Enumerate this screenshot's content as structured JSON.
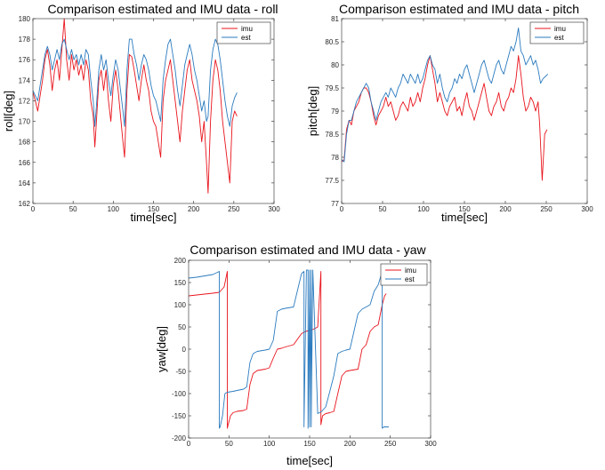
{
  "chart_data": [
    {
      "type": "line",
      "title": "Comparison estimated and IMU data - roll",
      "xlabel": "time[sec]",
      "ylabel": "roll[deg]",
      "xlim": [
        0,
        300
      ],
      "ylim": [
        162,
        180
      ],
      "xticks": [
        0,
        50,
        100,
        150,
        200,
        250,
        300
      ],
      "yticks": [
        162,
        164,
        166,
        168,
        170,
        172,
        174,
        176,
        178,
        180
      ],
      "legend": "top-right",
      "grid": false,
      "series": [
        {
          "name": "imu",
          "color": "#e8141c",
          "x": [
            0,
            3,
            6,
            9,
            12,
            15,
            18,
            21,
            24,
            27,
            30,
            33,
            36,
            39,
            42,
            45,
            48,
            51,
            54,
            57,
            60,
            63,
            66,
            69,
            72,
            75,
            77,
            79,
            82,
            85,
            88,
            91,
            94,
            97,
            100,
            103,
            106,
            109,
            112,
            114,
            117,
            120,
            123,
            126,
            129,
            132,
            135,
            138,
            141,
            144,
            147,
            150,
            153,
            156,
            159,
            162,
            165,
            168,
            171,
            174,
            177,
            180,
            183,
            186,
            189,
            192,
            195,
            198,
            201,
            204,
            207,
            210,
            213,
            216,
            218,
            221,
            224,
            227,
            230,
            233,
            236,
            239,
            242,
            245,
            248,
            251,
            254
          ],
          "y": [
            172.8,
            172,
            171,
            172.5,
            174,
            176,
            177,
            175.5,
            173,
            175,
            176,
            174,
            177,
            180,
            176,
            174,
            176.5,
            175,
            176,
            174.5,
            175.5,
            174,
            176,
            175,
            172,
            170.5,
            167.5,
            170,
            174,
            175,
            173,
            175,
            172,
            170,
            173.5,
            175,
            173,
            170.5,
            168,
            166.5,
            173,
            176.5,
            176.3,
            175,
            173.5,
            172,
            174,
            175.5,
            174,
            173,
            171,
            170,
            169.5,
            168,
            166.5,
            172,
            174,
            175,
            176,
            174,
            172,
            170,
            168,
            171,
            173,
            175,
            176,
            174,
            173,
            172,
            170.5,
            168,
            170,
            166,
            163,
            170,
            174,
            176,
            175,
            173,
            170,
            168,
            166,
            164,
            170,
            171,
            170.5
          ]
        },
        {
          "name": "est",
          "color": "#2b7bbf",
          "x": [
            0,
            3,
            6,
            9,
            12,
            15,
            18,
            21,
            24,
            27,
            30,
            33,
            36,
            39,
            42,
            45,
            48,
            51,
            54,
            57,
            60,
            63,
            66,
            69,
            72,
            75,
            77,
            79,
            82,
            85,
            88,
            91,
            94,
            97,
            100,
            103,
            106,
            109,
            112,
            114,
            117,
            120,
            123,
            126,
            129,
            132,
            135,
            138,
            141,
            144,
            147,
            150,
            153,
            156,
            159,
            162,
            165,
            168,
            171,
            174,
            177,
            180,
            183,
            186,
            189,
            192,
            195,
            198,
            201,
            204,
            207,
            210,
            213,
            216,
            218,
            221,
            224,
            227,
            230,
            233,
            236,
            239,
            242,
            245,
            248,
            251,
            254
          ],
          "y": [
            173,
            172.5,
            172,
            173.5,
            175,
            176.5,
            177.3,
            176.5,
            175,
            176,
            177,
            176,
            177.5,
            178,
            177,
            176,
            177,
            176,
            176.5,
            175.5,
            176.5,
            175.5,
            177,
            176.5,
            174,
            172,
            169.5,
            171.5,
            175,
            176.5,
            175,
            176,
            174,
            172.5,
            174.5,
            176,
            175,
            173,
            171,
            169.5,
            175,
            178,
            178,
            176.5,
            175.5,
            174,
            175.5,
            176.5,
            176,
            175,
            173.5,
            172.5,
            172,
            171,
            170,
            174,
            176,
            177.5,
            178,
            176.5,
            175,
            173,
            171.5,
            173.5,
            175.5,
            176.5,
            177.5,
            176.5,
            175,
            174,
            172.5,
            171,
            172,
            170,
            170.5,
            175,
            177,
            178,
            177.5,
            176,
            174,
            172,
            170.5,
            169.5,
            171.5,
            172.3,
            172.8
          ]
        }
      ]
    },
    {
      "type": "line",
      "title": "Comparison estimated and IMU data - pitch",
      "xlabel": "time[sec]",
      "ylabel": "pitch[deg]",
      "xlim": [
        0,
        300
      ],
      "ylim": [
        77,
        81
      ],
      "xticks": [
        0,
        50,
        100,
        150,
        200,
        250,
        300
      ],
      "yticks": [
        77,
        77.5,
        78,
        78.5,
        79,
        79.5,
        80,
        80.5,
        81
      ],
      "legend": "top-right",
      "grid": false,
      "series": [
        {
          "name": "imu",
          "color": "#e8141c",
          "x": [
            0,
            3,
            6,
            9,
            12,
            15,
            18,
            21,
            24,
            27,
            30,
            33,
            36,
            39,
            42,
            45,
            48,
            51,
            54,
            57,
            60,
            63,
            66,
            69,
            72,
            75,
            78,
            81,
            84,
            87,
            90,
            93,
            96,
            99,
            102,
            105,
            108,
            111,
            114,
            117,
            120,
            123,
            126,
            129,
            132,
            135,
            138,
            141,
            144,
            147,
            150,
            153,
            156,
            159,
            162,
            165,
            168,
            171,
            174,
            177,
            180,
            183,
            186,
            189,
            192,
            195,
            198,
            201,
            204,
            207,
            210,
            213,
            216,
            219,
            222,
            225,
            228,
            231,
            234,
            237,
            240,
            242,
            245,
            248,
            251
          ],
          "y": [
            77.9,
            77.95,
            78.6,
            78.8,
            78.7,
            79,
            79.1,
            79.2,
            79.4,
            79.5,
            79.5,
            79.4,
            79.2,
            78.9,
            78.7,
            78.9,
            79,
            79.1,
            79.3,
            79.1,
            79.2,
            79,
            78.8,
            78.9,
            79.1,
            79.2,
            79.1,
            79,
            79.3,
            79.1,
            79.2,
            79.4,
            79.2,
            79.5,
            79.7,
            80,
            80.2,
            79.9,
            79.6,
            79.2,
            79.4,
            79.2,
            79,
            78.9,
            79.1,
            79.2,
            79.3,
            79,
            79.1,
            78.9,
            79.2,
            79.4,
            79.1,
            79,
            78.8,
            79,
            79.2,
            79.4,
            79.6,
            79.3,
            79,
            78.9,
            79.1,
            79.2,
            79.4,
            79.1,
            79,
            79.2,
            79.3,
            79.5,
            79.4,
            79.7,
            80.2,
            79.8,
            79.3,
            79,
            79.1,
            79.3,
            79.2,
            79,
            79.2,
            78.7,
            77.5,
            78.5,
            78.6
          ]
        },
        {
          "name": "est",
          "color": "#2b7bbf",
          "x": [
            0,
            3,
            6,
            9,
            12,
            15,
            18,
            21,
            24,
            27,
            30,
            33,
            36,
            39,
            42,
            45,
            48,
            51,
            54,
            57,
            60,
            63,
            66,
            69,
            72,
            75,
            78,
            81,
            84,
            87,
            90,
            93,
            96,
            99,
            102,
            105,
            108,
            111,
            114,
            117,
            120,
            123,
            126,
            129,
            132,
            135,
            138,
            141,
            144,
            147,
            150,
            153,
            156,
            159,
            162,
            165,
            168,
            171,
            174,
            177,
            180,
            183,
            186,
            189,
            192,
            195,
            198,
            201,
            204,
            207,
            210,
            213,
            216,
            219,
            222,
            225,
            228,
            231,
            234,
            237,
            240,
            243,
            246,
            249,
            252
          ],
          "y": [
            77.95,
            77.9,
            78.5,
            78.8,
            78.8,
            79,
            79.2,
            79.3,
            79.4,
            79.5,
            79.6,
            79.5,
            79.2,
            79,
            78.8,
            79,
            79.2,
            79.3,
            79.4,
            79.3,
            79.5,
            79.4,
            79.3,
            79.5,
            79.6,
            79.8,
            79.7,
            79.6,
            79.8,
            79.7,
            79.6,
            79.8,
            79.6,
            79.7,
            79.9,
            80.1,
            80.2,
            80,
            79.9,
            79.6,
            79.8,
            79.5,
            79.3,
            79.2,
            79.4,
            79.5,
            79.7,
            79.6,
            79.8,
            79.7,
            79.9,
            80,
            79.8,
            79.6,
            79.4,
            79.6,
            79.8,
            80,
            80.1,
            79.9,
            79.7,
            79.6,
            79.8,
            80,
            80.1,
            79.9,
            79.8,
            80,
            80.2,
            80.4,
            80.3,
            80.5,
            80.8,
            80.3,
            80.2,
            80,
            80.1,
            80.2,
            80,
            80.1,
            79.9,
            79.6,
            79.7,
            79.75,
            79.8
          ]
        }
      ]
    },
    {
      "type": "line",
      "title": "Comparison estimated and IMU data - yaw",
      "xlabel": "time[sec]",
      "ylabel": "yaw[deg]",
      "xlim": [
        0,
        300
      ],
      "ylim": [
        -200,
        200
      ],
      "xticks": [
        0,
        50,
        100,
        150,
        200,
        250,
        300
      ],
      "yticks": [
        -200,
        -150,
        -100,
        -50,
        0,
        50,
        100,
        150,
        200
      ],
      "legend": "top-right",
      "grid": false,
      "series": [
        {
          "name": "imu",
          "color": "#e8141c",
          "x": [
            0,
            10,
            20,
            30,
            38,
            44,
            48,
            48.01,
            49,
            52,
            55,
            60,
            68,
            72,
            76,
            80,
            85,
            95,
            100,
            105,
            110,
            115,
            120,
            130,
            140,
            145,
            150,
            155,
            160,
            164,
            164.01,
            166,
            170,
            175,
            180,
            185,
            190,
            195,
            200,
            210,
            215,
            220,
            225,
            230,
            235,
            240,
            243,
            245
          ],
          "y": [
            120,
            122,
            124,
            126,
            128,
            140,
            175,
            -178,
            -170,
            -150,
            -143,
            -140,
            -138,
            -135,
            -80,
            -55,
            -48,
            -45,
            -42,
            -20,
            0,
            2,
            5,
            10,
            35,
            40,
            42,
            45,
            50,
            175,
            -170,
            -150,
            -145,
            -143,
            -140,
            -100,
            -60,
            -50,
            -48,
            -45,
            0,
            10,
            40,
            50,
            55,
            100,
            120,
            125
          ]
        },
        {
          "name": "est",
          "color": "#2b7bbf",
          "x": [
            0,
            10,
            20,
            30,
            38,
            38.01,
            39,
            42,
            45,
            48,
            55,
            60,
            68,
            72,
            76,
            80,
            85,
            95,
            100,
            105,
            110,
            115,
            120,
            130,
            140,
            143,
            143.01,
            146,
            148,
            148.01,
            150,
            150.01,
            152,
            152.01,
            154,
            160,
            165,
            170,
            175,
            180,
            185,
            190,
            195,
            200,
            210,
            215,
            220,
            225,
            230,
            235,
            240,
            240.01,
            242,
            248
          ],
          "y": [
            160,
            162,
            165,
            168,
            175,
            -178,
            -175,
            -150,
            -100,
            -97,
            -95,
            -93,
            -90,
            -85,
            -30,
            -10,
            -5,
            -2,
            0,
            20,
            85,
            90,
            92,
            95,
            170,
            175,
            -175,
            178,
            178,
            -178,
            178,
            -175,
            178,
            -175,
            178,
            -145,
            -140,
            -130,
            -95,
            -60,
            -10,
            -5,
            -2,
            0,
            80,
            90,
            95,
            100,
            130,
            145,
            175,
            -178,
            -175,
            -175
          ]
        }
      ]
    }
  ]
}
